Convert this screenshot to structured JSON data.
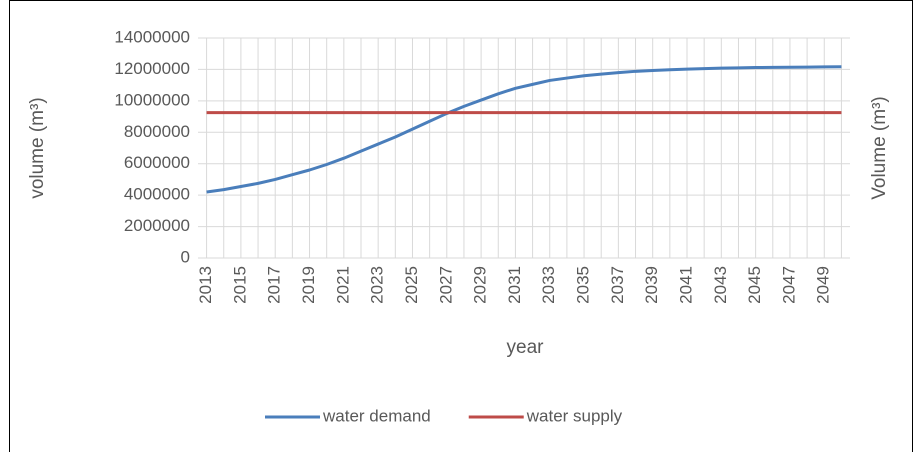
{
  "chart_data": {
    "type": "line",
    "x": [
      2013,
      2014,
      2015,
      2016,
      2017,
      2018,
      2019,
      2020,
      2021,
      2022,
      2023,
      2024,
      2025,
      2026,
      2027,
      2028,
      2029,
      2030,
      2031,
      2032,
      2033,
      2034,
      2035,
      2036,
      2037,
      2038,
      2039,
      2040,
      2041,
      2042,
      2043,
      2044,
      2045,
      2046,
      2047,
      2048,
      2049,
      2050
    ],
    "series": [
      {
        "name": "water demand",
        "color": "#4a7ebb",
        "values": [
          4200000,
          4350000,
          4550000,
          4750000,
          5000000,
          5300000,
          5600000,
          5950000,
          6350000,
          6800000,
          7250000,
          7700000,
          8200000,
          8700000,
          9200000,
          9650000,
          10050000,
          10450000,
          10800000,
          11050000,
          11300000,
          11450000,
          11600000,
          11700000,
          11800000,
          11880000,
          11930000,
          11980000,
          12020000,
          12050000,
          12080000,
          12100000,
          12120000,
          12130000,
          12140000,
          12150000,
          12160000,
          12170000
        ]
      },
      {
        "name": "water supply",
        "color": "#be4b48",
        "values": [
          9250000,
          9250000,
          9250000,
          9250000,
          9250000,
          9250000,
          9250000,
          9250000,
          9250000,
          9250000,
          9250000,
          9250000,
          9250000,
          9250000,
          9250000,
          9250000,
          9250000,
          9250000,
          9250000,
          9250000,
          9250000,
          9250000,
          9250000,
          9250000,
          9250000,
          9250000,
          9250000,
          9250000,
          9250000,
          9250000,
          9250000,
          9250000,
          9250000,
          9250000,
          9250000,
          9250000,
          9250000,
          9250000
        ]
      }
    ],
    "xlim": [
      2012.5,
      2050.5
    ],
    "xticks": [
      2013,
      2015,
      2017,
      2019,
      2021,
      2023,
      2025,
      2027,
      2029,
      2031,
      2033,
      2035,
      2037,
      2039,
      2041,
      2043,
      2045,
      2047,
      2049
    ],
    "ylim": [
      0,
      14000000
    ],
    "yticks": [
      0,
      2000000,
      4000000,
      6000000,
      8000000,
      10000000,
      12000000,
      14000000
    ],
    "grid": true,
    "x_label": "year",
    "y_label": "volume (m³)",
    "y2_label": "Volume (m³)",
    "legend": "bottom"
  }
}
